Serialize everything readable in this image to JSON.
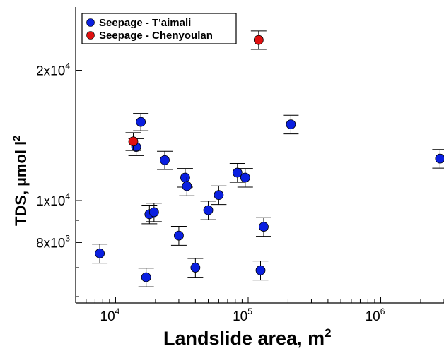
{
  "chart_data": {
    "type": "scatter",
    "xscale": "log",
    "yscale": "log",
    "xlim": [
      5000,
      3000000
    ],
    "ylim": [
      5800,
      28000
    ],
    "xlabel": "Landslide area, m",
    "xlabel_sup": "2",
    "ylabel": "TDS, µmol l",
    "ylabel_sup": "2",
    "legend_position": "top-left",
    "x_ticks": [
      {
        "value": 10000,
        "base": "10",
        "exp": "4"
      },
      {
        "value": 100000,
        "base": "10",
        "exp": "5"
      },
      {
        "value": 1000000,
        "base": "10",
        "exp": "6"
      }
    ],
    "y_ticks": [
      {
        "value": 8000,
        "base": "8x10",
        "exp": "3"
      },
      {
        "value": 10000,
        "base": "1x10",
        "exp": "4"
      },
      {
        "value": 20000,
        "base": "2x10",
        "exp": "4"
      }
    ],
    "series": [
      {
        "name": "Seepage - T'aimali",
        "color": "#0a1fe0",
        "points": [
          {
            "x": 7600,
            "y": 7550,
            "err": 380
          },
          {
            "x": 14300,
            "y": 13300,
            "err": 600
          },
          {
            "x": 15500,
            "y": 15200,
            "err": 700
          },
          {
            "x": 17000,
            "y": 6650,
            "err": 330
          },
          {
            "x": 18000,
            "y": 9300,
            "err": 460
          },
          {
            "x": 19500,
            "y": 9400,
            "err": 460
          },
          {
            "x": 23500,
            "y": 12400,
            "err": 600
          },
          {
            "x": 30000,
            "y": 8300,
            "err": 420
          },
          {
            "x": 33500,
            "y": 11300,
            "err": 560
          },
          {
            "x": 34500,
            "y": 10800,
            "err": 540
          },
          {
            "x": 40000,
            "y": 7000,
            "err": 350
          },
          {
            "x": 50000,
            "y": 9500,
            "err": 470
          },
          {
            "x": 60000,
            "y": 10300,
            "err": 510
          },
          {
            "x": 83000,
            "y": 11600,
            "err": 580
          },
          {
            "x": 95000,
            "y": 11300,
            "err": 560
          },
          {
            "x": 124000,
            "y": 6900,
            "err": 350
          },
          {
            "x": 131000,
            "y": 8700,
            "err": 430
          },
          {
            "x": 210000,
            "y": 15000,
            "err": 740
          },
          {
            "x": 2800000,
            "y": 12500,
            "err": 620
          }
        ]
      },
      {
        "name": "Seepage - Chenyoulan",
        "color": "#e01010",
        "points": [
          {
            "x": 13600,
            "y": 13700,
            "err": 650
          },
          {
            "x": 120000,
            "y": 23500,
            "err": 1150
          }
        ]
      }
    ]
  }
}
